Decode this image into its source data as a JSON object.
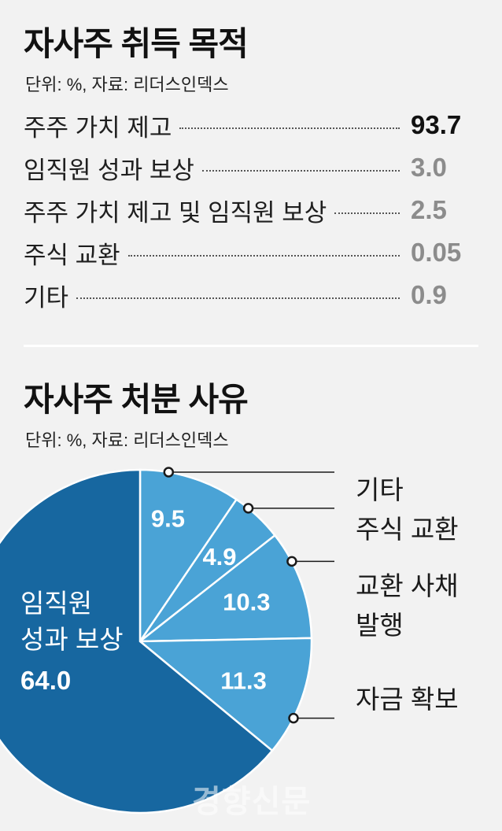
{
  "chart_data": [
    {
      "type": "table",
      "title": "자사주 취득 목적",
      "unit_source": "단위: %, 자료: 리더스인덱스",
      "categories": [
        "주주 가치 제고",
        "임직원 성과 보상",
        "주주 가치 제고 및 임직원 보상",
        "주식 교환",
        "기타"
      ],
      "values": [
        "93.7",
        "3.0",
        "2.5",
        "0.05",
        "0.9"
      ],
      "emphasized": [
        true,
        false,
        false,
        false,
        false
      ]
    },
    {
      "type": "pie",
      "title": "자사주 처분 사유",
      "unit_source": "단위: %, 자료: 리더스인덱스",
      "slices": [
        {
          "label": "기타",
          "value": 9.5,
          "value_label": "9.5",
          "color": "#4aa3d6"
        },
        {
          "label": "주식 교환",
          "value": 4.9,
          "value_label": "4.9",
          "color": "#4aa3d6"
        },
        {
          "label": "교환 사채 발행",
          "label_lines": [
            "교환 사채",
            "발행"
          ],
          "value": 10.3,
          "value_label": "10.3",
          "color": "#4aa3d6"
        },
        {
          "label": "자금 확보",
          "value": 11.3,
          "value_label": "11.3",
          "color": "#4aa3d6"
        },
        {
          "label": "임직원 성과 보상",
          "label_lines": [
            "임직원",
            "성과 보상"
          ],
          "value": 64.0,
          "value_label": "64.0",
          "color": "#1767a0"
        }
      ]
    }
  ],
  "watermark": "경향신문"
}
